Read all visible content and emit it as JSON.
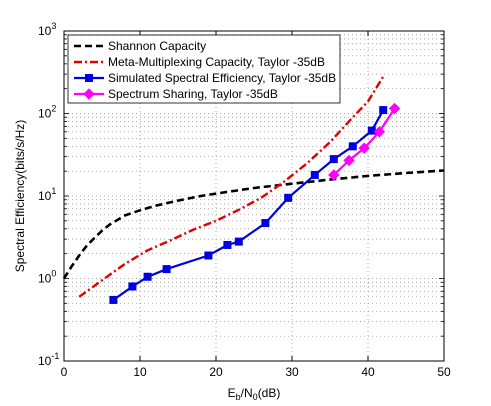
{
  "chart_data": {
    "type": "line",
    "title": "",
    "xlabel": {
      "main": "E",
      "sub1": "b",
      "mid": "/N",
      "sub2": "0",
      "tail": "(dB)"
    },
    "ylabel": "Spectral Efficiency(bits/s/Hz)",
    "xlim": [
      0,
      50
    ],
    "ylim": [
      0.1,
      1000
    ],
    "yscale": "log",
    "grid": true,
    "legend_position": "top-left",
    "xticks": [
      "0",
      "10",
      "20",
      "30",
      "40",
      "50"
    ],
    "yticks": [
      {
        "base": "10",
        "exp": "-1"
      },
      {
        "base": "10",
        "exp": "0"
      },
      {
        "base": "10",
        "exp": "1"
      },
      {
        "base": "10",
        "exp": "2"
      },
      {
        "base": "10",
        "exp": "3"
      }
    ],
    "series": [
      {
        "name": "Shannon Capacity",
        "color": "#000000",
        "style": "dashed",
        "marker": "none",
        "x": [
          0,
          1,
          2,
          3,
          4,
          5,
          6,
          8,
          10,
          12,
          15,
          18,
          20,
          25,
          30,
          35,
          40,
          45,
          50
        ],
        "y": [
          1.0,
          1.4,
          1.9,
          2.5,
          3.1,
          3.8,
          4.5,
          5.8,
          6.7,
          7.6,
          8.8,
          10.0,
          10.7,
          12.5,
          14.1,
          15.8,
          17.5,
          19.0,
          20.4
        ]
      },
      {
        "name": "Meta-Multiplexing Capacity, Taylor -35dB",
        "color": "#e00000",
        "style": "dashdot",
        "marker": "none",
        "x": [
          2,
          5,
          8,
          11,
          14,
          17,
          20,
          23,
          26,
          29,
          32,
          35,
          38,
          40,
          42
        ],
        "y": [
          0.6,
          0.95,
          1.5,
          2.2,
          2.9,
          3.9,
          5.0,
          6.8,
          9.6,
          15.0,
          25.0,
          45.0,
          90.0,
          140.0,
          280.0
        ]
      },
      {
        "name": "Simulated Spectral Efficiency, Taylor -35dB",
        "color": "#0000e0",
        "style": "solid",
        "marker": "square",
        "x": [
          6.5,
          9,
          11,
          13.5,
          19,
          21.5,
          23,
          26.5,
          29.5,
          33,
          35.5,
          38,
          40.5,
          42
        ],
        "y": [
          0.55,
          0.8,
          1.05,
          1.3,
          1.9,
          2.55,
          2.8,
          4.7,
          9.5,
          18.0,
          28.0,
          40.0,
          62.0,
          110.0
        ]
      },
      {
        "name": "Spectrum Sharing, Taylor -35dB",
        "color": "#ff00ff",
        "style": "solid",
        "marker": "diamond",
        "x": [
          35.5,
          37.5,
          39.5,
          41.5,
          43.5
        ],
        "y": [
          18.0,
          27.0,
          38.0,
          60.0,
          115.0
        ]
      }
    ]
  }
}
